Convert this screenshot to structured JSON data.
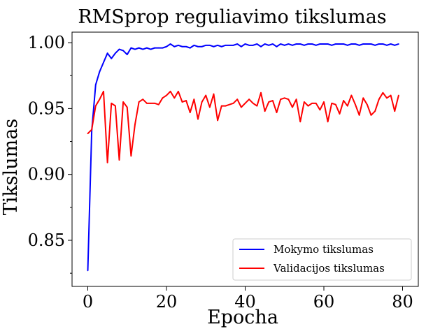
{
  "chart_data": {
    "type": "line",
    "title": "RMSprop reguliavimo tikslumas",
    "xlabel": "Epocha",
    "ylabel": "Tikslumas",
    "xlim": [
      -4,
      84
    ],
    "ylim": [
      0.815,
      1.008
    ],
    "x_ticks": [
      0,
      20,
      40,
      60,
      80
    ],
    "x_tick_labels": [
      "0",
      "20",
      "40",
      "60",
      "80"
    ],
    "y_ticks": [
      0.85,
      0.9,
      0.95,
      1.0
    ],
    "y_tick_labels": [
      "0.85",
      "0.90",
      "0.95",
      "1.00"
    ],
    "y_minor_ticks": [
      0.825,
      0.875,
      0.925,
      0.975
    ],
    "grid": false,
    "legend_position": "bottom-right",
    "x": [
      0,
      1,
      2,
      3,
      4,
      5,
      6,
      7,
      8,
      9,
      10,
      11,
      12,
      13,
      14,
      15,
      16,
      17,
      18,
      19,
      20,
      21,
      22,
      23,
      24,
      25,
      26,
      27,
      28,
      29,
      30,
      31,
      32,
      33,
      34,
      35,
      36,
      37,
      38,
      39,
      40,
      41,
      42,
      43,
      44,
      45,
      46,
      47,
      48,
      49,
      50,
      51,
      52,
      53,
      54,
      55,
      56,
      57,
      58,
      59,
      60,
      61,
      62,
      63,
      64,
      65,
      66,
      67,
      68,
      69,
      70,
      71,
      72,
      73,
      74,
      75,
      76,
      77,
      78,
      79
    ],
    "series": [
      {
        "name": "Mokymo tikslumas",
        "color": "#0000ff",
        "values": [
          0.827,
          0.933,
          0.968,
          0.978,
          0.985,
          0.992,
          0.988,
          0.992,
          0.995,
          0.994,
          0.991,
          0.996,
          0.995,
          0.996,
          0.995,
          0.996,
          0.995,
          0.996,
          0.996,
          0.996,
          0.997,
          0.999,
          0.997,
          0.998,
          0.997,
          0.997,
          0.996,
          0.998,
          0.997,
          0.997,
          0.998,
          0.998,
          0.997,
          0.998,
          0.997,
          0.998,
          0.998,
          0.998,
          0.999,
          0.997,
          0.999,
          0.998,
          0.998,
          0.999,
          0.997,
          0.999,
          0.998,
          0.999,
          0.997,
          0.999,
          0.998,
          0.999,
          0.998,
          0.999,
          0.999,
          0.998,
          0.999,
          0.999,
          0.998,
          0.999,
          0.999,
          0.999,
          0.998,
          0.999,
          0.999,
          0.999,
          0.998,
          0.999,
          0.999,
          0.998,
          0.999,
          0.999,
          0.999,
          0.998,
          0.999,
          0.999,
          0.998,
          0.999,
          0.998,
          0.999
        ]
      },
      {
        "name": "Validacijos tikslumas",
        "color": "#ff0000",
        "values": [
          0.931,
          0.934,
          0.952,
          0.957,
          0.963,
          0.909,
          0.954,
          0.952,
          0.911,
          0.955,
          0.951,
          0.914,
          0.938,
          0.955,
          0.957,
          0.954,
          0.954,
          0.954,
          0.953,
          0.958,
          0.96,
          0.963,
          0.958,
          0.963,
          0.955,
          0.956,
          0.947,
          0.957,
          0.942,
          0.955,
          0.96,
          0.951,
          0.961,
          0.941,
          0.952,
          0.952,
          0.953,
          0.954,
          0.957,
          0.951,
          0.954,
          0.957,
          0.954,
          0.952,
          0.962,
          0.948,
          0.955,
          0.956,
          0.947,
          0.957,
          0.958,
          0.957,
          0.951,
          0.957,
          0.94,
          0.955,
          0.952,
          0.954,
          0.954,
          0.949,
          0.955,
          0.94,
          0.954,
          0.953,
          0.946,
          0.956,
          0.952,
          0.96,
          0.953,
          0.945,
          0.958,
          0.953,
          0.945,
          0.948,
          0.957,
          0.962,
          0.958,
          0.96,
          0.948,
          0.96
        ]
      }
    ]
  }
}
